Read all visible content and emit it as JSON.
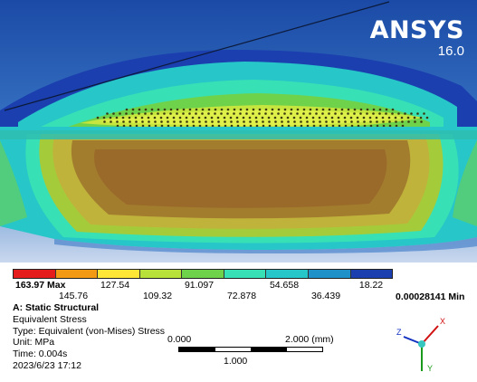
{
  "brand": {
    "name": "ANSYS",
    "version": "16.0"
  },
  "legend": {
    "colors": [
      "#e41c1c",
      "#f39a14",
      "#ffe637",
      "#b8e23a",
      "#6fd24b",
      "#38e0b5",
      "#27c6c8",
      "#1f91c9",
      "#1b3faf"
    ],
    "max_label": "163.97 Max",
    "min_label": "0.00028141 Min",
    "top_ticks": [
      "127.54",
      "91.097",
      "54.658",
      "18.22"
    ],
    "bottom_ticks": [
      "145.76",
      "109.32",
      "72.878",
      "36.439"
    ]
  },
  "info": {
    "title": "A: Static Structural",
    "result": "Equivalent Stress",
    "type": "Type: Equivalent (von-Mises) Stress",
    "unit": "Unit: MPa",
    "time": "Time: 0.004s",
    "date": "2023/6/23 17:12"
  },
  "scale": {
    "start": "0.000",
    "end": "2.000 (mm)",
    "mid": "1.000"
  },
  "triad": {
    "x": "X",
    "y": "Y",
    "z": "Z"
  }
}
